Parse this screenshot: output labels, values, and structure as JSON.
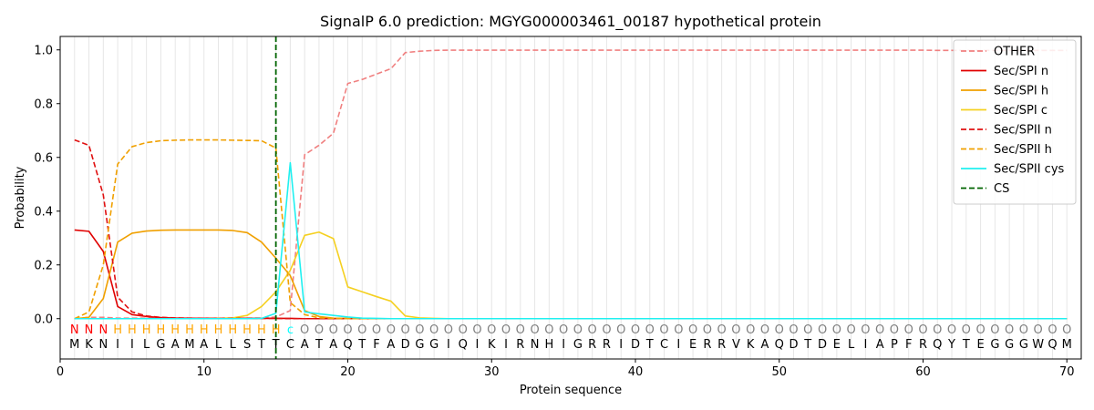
{
  "chart_data": {
    "type": "line",
    "title": "SignalP 6.0 prediction: MGYG000003461_00187 hypothetical protein",
    "xlabel": "Protein sequence",
    "ylabel": "Probability",
    "xlim": [
      0,
      71
    ],
    "ylim": [
      -0.15,
      1.05
    ],
    "x_ticks": [
      0,
      10,
      20,
      30,
      40,
      50,
      60,
      70
    ],
    "y_ticks": [
      0.0,
      0.2,
      0.4,
      0.6,
      0.8,
      1.0
    ],
    "x_tick_labels": [
      "0",
      "10",
      "20",
      "30",
      "40",
      "50",
      "60",
      "70"
    ],
    "y_tick_labels": [
      "0.0",
      "0.2",
      "0.4",
      "0.6",
      "0.8",
      "1.0"
    ],
    "grid": "vertical lines at each residue",
    "legend_position": "top-right",
    "sequence": [
      "M",
      "K",
      "N",
      "I",
      "I",
      "L",
      "G",
      "A",
      "M",
      "A",
      "L",
      "L",
      "S",
      "T",
      "T",
      "C",
      "A",
      "T",
      "A",
      "Q",
      "T",
      "F",
      "A",
      "D",
      "G",
      "G",
      "I",
      "Q",
      "I",
      "K",
      "I",
      "R",
      "N",
      "H",
      "I",
      "G",
      "R",
      "R",
      "I",
      "D",
      "T",
      "C",
      "I",
      "E",
      "R",
      "R",
      "V",
      "K",
      "A",
      "Q",
      "D",
      "T",
      "D",
      "E",
      "L",
      "I",
      "A",
      "P",
      "F",
      "R",
      "Q",
      "Y",
      "T",
      "E",
      "G",
      "G",
      "G",
      "W",
      "Q",
      "M"
    ],
    "region_labels": [
      "N",
      "N",
      "N",
      "H",
      "H",
      "H",
      "H",
      "H",
      "H",
      "H",
      "H",
      "H",
      "H",
      "H",
      "H",
      "c",
      "O",
      "O",
      "O",
      "O",
      "O",
      "O",
      "O",
      "O",
      "O",
      "O",
      "O",
      "O",
      "O",
      "O",
      "O",
      "O",
      "O",
      "O",
      "O",
      "O",
      "O",
      "O",
      "O",
      "O",
      "O",
      "O",
      "O",
      "O",
      "O",
      "O",
      "O",
      "O",
      "O",
      "O",
      "O",
      "O",
      "O",
      "O",
      "O",
      "O",
      "O",
      "O",
      "O",
      "O",
      "O",
      "O",
      "O",
      "O",
      "O",
      "O",
      "O",
      "O",
      "O",
      "O"
    ],
    "region_colors": {
      "N": "#ff0000",
      "H": "#ffa500",
      "c": "#00ffff",
      "O": "#808080"
    },
    "cleavage_site": 15,
    "series": [
      {
        "name": "OTHER",
        "color": "#f08080",
        "dash": "dashed",
        "values": [
          0.0,
          0.005,
          0.005,
          0.002,
          0.002,
          0.002,
          0.002,
          0.002,
          0.002,
          0.002,
          0.002,
          0.002,
          0.002,
          0.003,
          0.006,
          0.03,
          0.61,
          0.645,
          0.69,
          0.875,
          0.89,
          0.91,
          0.93,
          0.99,
          0.995,
          0.998,
          0.999,
          0.999,
          0.999,
          0.999,
          0.999,
          0.999,
          0.999,
          0.999,
          0.999,
          0.999,
          0.999,
          0.999,
          0.999,
          0.999,
          0.999,
          0.999,
          0.999,
          0.999,
          0.999,
          0.999,
          0.999,
          0.999,
          0.999,
          0.999,
          0.999,
          0.999,
          0.999,
          0.999,
          0.999,
          0.999,
          0.999,
          0.999,
          0.999,
          0.999,
          0.998,
          0.998,
          0.998,
          0.998,
          0.998,
          0.998,
          0.998,
          0.998,
          0.998,
          0.998
        ]
      },
      {
        "name": "Sec/SPI n",
        "color": "#e00000",
        "dash": "solid",
        "values": [
          0.33,
          0.325,
          0.25,
          0.045,
          0.015,
          0.008,
          0.004,
          0.002,
          0.001,
          0.001,
          0.001,
          0.001,
          0.001,
          0.001,
          0.001,
          0.001,
          0.0,
          0.0,
          0.0,
          0.0,
          0.0,
          0.0,
          0.0,
          0.0,
          0.0,
          0.0,
          0.0,
          0.0,
          0.0,
          0.0,
          0.0,
          0.0,
          0.0,
          0.0,
          0.0,
          0.0,
          0.0,
          0.0,
          0.0,
          0.0,
          0.0,
          0.0,
          0.0,
          0.0,
          0.0,
          0.0,
          0.0,
          0.0,
          0.0,
          0.0,
          0.0,
          0.0,
          0.0,
          0.0,
          0.0,
          0.0,
          0.0,
          0.0,
          0.0,
          0.0,
          0.0,
          0.0,
          0.0,
          0.0,
          0.0,
          0.0,
          0.0,
          0.0,
          0.0,
          0.0
        ]
      },
      {
        "name": "Sec/SPI h",
        "color": "#f0a000",
        "dash": "solid",
        "values": [
          0.0,
          0.005,
          0.075,
          0.285,
          0.318,
          0.326,
          0.329,
          0.33,
          0.33,
          0.33,
          0.33,
          0.328,
          0.32,
          0.285,
          0.225,
          0.16,
          0.03,
          0.008,
          0.002,
          0.001,
          0.0,
          0.0,
          0.0,
          0.0,
          0.0,
          0.0,
          0.0,
          0.0,
          0.0,
          0.0,
          0.0,
          0.0,
          0.0,
          0.0,
          0.0,
          0.0,
          0.0,
          0.0,
          0.0,
          0.0,
          0.0,
          0.0,
          0.0,
          0.0,
          0.0,
          0.0,
          0.0,
          0.0,
          0.0,
          0.0,
          0.0,
          0.0,
          0.0,
          0.0,
          0.0,
          0.0,
          0.0,
          0.0,
          0.0,
          0.0,
          0.0,
          0.0,
          0.0,
          0.0,
          0.0,
          0.0,
          0.0,
          0.0,
          0.0,
          0.0
        ]
      },
      {
        "name": "Sec/SPI c",
        "color": "#f5d020",
        "dash": "solid",
        "values": [
          0.0,
          0.0,
          0.0,
          0.0,
          0.0,
          0.0,
          0.0,
          0.0,
          0.0,
          0.0,
          0.001,
          0.003,
          0.012,
          0.045,
          0.1,
          0.18,
          0.31,
          0.322,
          0.298,
          0.118,
          0.1,
          0.082,
          0.065,
          0.01,
          0.003,
          0.001,
          0.0,
          0.0,
          0.0,
          0.0,
          0.0,
          0.0,
          0.0,
          0.0,
          0.0,
          0.0,
          0.0,
          0.0,
          0.0,
          0.0,
          0.0,
          0.0,
          0.0,
          0.0,
          0.0,
          0.0,
          0.0,
          0.0,
          0.0,
          0.0,
          0.0,
          0.0,
          0.0,
          0.0,
          0.0,
          0.0,
          0.0,
          0.0,
          0.0,
          0.0,
          0.0,
          0.0,
          0.0,
          0.0,
          0.0,
          0.0,
          0.0,
          0.0,
          0.0,
          0.0
        ]
      },
      {
        "name": "Sec/SPII n",
        "color": "#e01010",
        "dash": "dashed",
        "values": [
          0.665,
          0.645,
          0.46,
          0.08,
          0.025,
          0.01,
          0.005,
          0.003,
          0.002,
          0.001,
          0.001,
          0.001,
          0.001,
          0.001,
          0.001,
          0.0,
          0.0,
          0.0,
          0.0,
          0.0,
          0.0,
          0.0,
          0.0,
          0.0,
          0.0,
          0.0,
          0.0,
          0.0,
          0.0,
          0.0,
          0.0,
          0.0,
          0.0,
          0.0,
          0.0,
          0.0,
          0.0,
          0.0,
          0.0,
          0.0,
          0.0,
          0.0,
          0.0,
          0.0,
          0.0,
          0.0,
          0.0,
          0.0,
          0.0,
          0.0,
          0.0,
          0.0,
          0.0,
          0.0,
          0.0,
          0.0,
          0.0,
          0.0,
          0.0,
          0.0,
          0.0,
          0.0,
          0.0,
          0.0,
          0.0,
          0.0,
          0.0,
          0.0,
          0.0,
          0.0
        ]
      },
      {
        "name": "Sec/SPII h",
        "color": "#f0a000",
        "dash": "dashed",
        "values": [
          0.0,
          0.025,
          0.2,
          0.575,
          0.64,
          0.655,
          0.662,
          0.664,
          0.665,
          0.665,
          0.665,
          0.664,
          0.663,
          0.662,
          0.635,
          0.06,
          0.015,
          0.003,
          0.001,
          0.0,
          0.0,
          0.0,
          0.0,
          0.0,
          0.0,
          0.0,
          0.0,
          0.0,
          0.0,
          0.0,
          0.0,
          0.0,
          0.0,
          0.0,
          0.0,
          0.0,
          0.0,
          0.0,
          0.0,
          0.0,
          0.0,
          0.0,
          0.0,
          0.0,
          0.0,
          0.0,
          0.0,
          0.0,
          0.0,
          0.0,
          0.0,
          0.0,
          0.0,
          0.0,
          0.0,
          0.0,
          0.0,
          0.0,
          0.0,
          0.0,
          0.0,
          0.0,
          0.0,
          0.0,
          0.0,
          0.0,
          0.0,
          0.0,
          0.0,
          0.0
        ]
      },
      {
        "name": "Sec/SPII cys",
        "color": "#20f0f0",
        "dash": "solid",
        "values": [
          0.0,
          0.0,
          0.0,
          0.0,
          0.0,
          0.0,
          0.0,
          0.0,
          0.0,
          0.0,
          0.0,
          0.0,
          0.0,
          0.001,
          0.02,
          0.58,
          0.025,
          0.018,
          0.012,
          0.006,
          0.002,
          0.001,
          0.0,
          0.0,
          0.0,
          0.0,
          0.0,
          0.0,
          0.0,
          0.0,
          0.0,
          0.0,
          0.0,
          0.0,
          0.0,
          0.0,
          0.0,
          0.0,
          0.0,
          0.0,
          0.0,
          0.0,
          0.0,
          0.0,
          0.0,
          0.0,
          0.0,
          0.0,
          0.0,
          0.0,
          0.0,
          0.0,
          0.0,
          0.0,
          0.0,
          0.0,
          0.0,
          0.0,
          0.0,
          0.0,
          0.0,
          0.0,
          0.0,
          0.0,
          0.0,
          0.0,
          0.0,
          0.0,
          0.0,
          0.0
        ]
      },
      {
        "name": "CS",
        "color": "#006400",
        "dash": "dashed",
        "values": []
      }
    ]
  }
}
